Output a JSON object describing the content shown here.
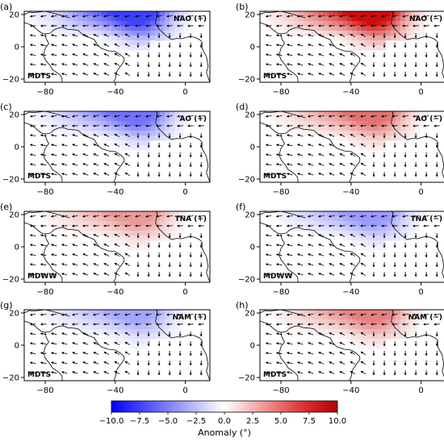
{
  "chart_data": {
    "type": "heatmap",
    "x_ticks": [
      -80,
      -40,
      0
    ],
    "y_ticks": [
      -20,
      0,
      20
    ],
    "xlim": [
      -92,
      14
    ],
    "ylim": [
      -22,
      22
    ],
    "colorbar": {
      "label": "Anomaly (°)",
      "range": [
        -10,
        10
      ],
      "ticks": [
        "−10.0",
        "−7.5",
        "−5.0",
        "−2.5",
        "0.0",
        "2.5",
        "5.0",
        "7.5",
        "10.0"
      ],
      "colors": {
        "negative": "#0000ff",
        "zero": "#ffffff",
        "positive": "#cc0000"
      }
    },
    "panels": [
      {
        "label": "(a)",
        "index": "NAO (+)",
        "region": "MDTS",
        "sign": -1,
        "intensity": 0.75
      },
      {
        "label": "(b)",
        "index": "NAO (−)",
        "region": "MDTS",
        "sign": 1,
        "intensity": 0.95
      },
      {
        "label": "(c)",
        "index": "AO (+)",
        "region": "MDTS",
        "sign": -1,
        "intensity": 0.55
      },
      {
        "label": "(d)",
        "index": "AO (−)",
        "region": "MDTS",
        "sign": 1,
        "intensity": 0.55
      },
      {
        "label": "(e)",
        "index": "TNA (+)",
        "region": "MDWW",
        "sign": 1,
        "intensity": 0.4
      },
      {
        "label": "(f)",
        "index": "TNA (−)",
        "region": "MDWW",
        "sign": -1,
        "intensity": 0.4
      },
      {
        "label": "(g)",
        "index": "NAM (+)",
        "region": "MDTS",
        "sign": -1,
        "intensity": 0.35
      },
      {
        "label": "(h)",
        "index": "NAM (−)",
        "region": "MDTS",
        "sign": 1,
        "intensity": 0.5
      }
    ]
  }
}
